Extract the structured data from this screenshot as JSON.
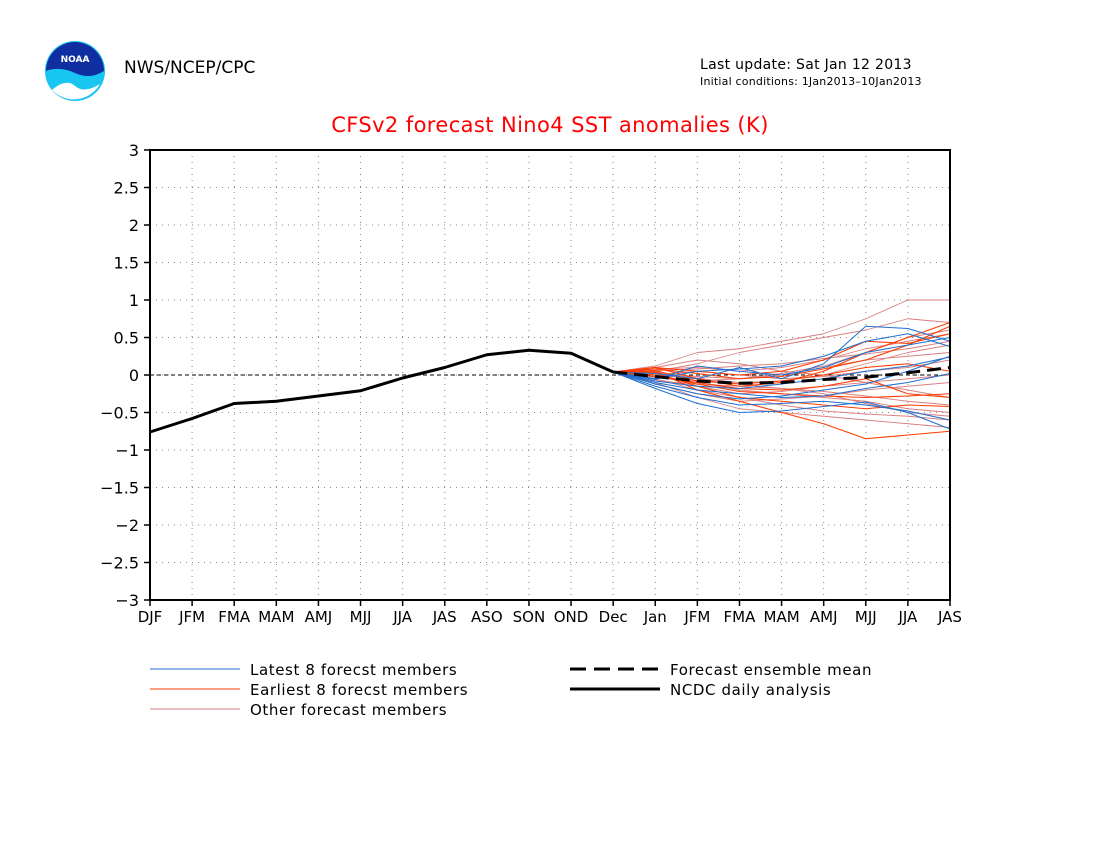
{
  "header": {
    "logo_text": "NOAA",
    "org": "NWS/NCEP/CPC",
    "last_update": "Last update: Sat Jan 12 2013",
    "initial_conditions": "Initial conditions: 1Jan2013–10Jan2013"
  },
  "colors": {
    "title": "#ff0000",
    "latest": "#1f6fd0",
    "earliest": "#ff3c00",
    "other": "#d98080",
    "analysis": "#000000",
    "mean": "#000000"
  },
  "chart_data": {
    "type": "line",
    "title": "CFSv2 forecast Nino4 SST anomalies (K)",
    "xlabel": "",
    "ylabel": "",
    "categories": [
      "DJF",
      "JFM",
      "FMA",
      "MAM",
      "AMJ",
      "MJJ",
      "JJA",
      "JAS",
      "ASO",
      "SON",
      "OND",
      "Dec",
      "Jan",
      "JFM",
      "FMA",
      "MAM",
      "AMJ",
      "MJJ",
      "JJA",
      "JAS"
    ],
    "ylim": [
      -3,
      3
    ],
    "yticks": [
      "3",
      "2.5",
      "2",
      "1.5",
      "1",
      "0.5",
      "0",
      "−0.5",
      "−1",
      "−1.5",
      "−2",
      "−2.5",
      "−3"
    ],
    "grid": true,
    "zero_line": true,
    "legend": {
      "placement": "bottom",
      "items": [
        {
          "label": "Latest 8 forecst members",
          "style": "latest"
        },
        {
          "label": "Earliest 8 forecst members",
          "style": "earliest"
        },
        {
          "label": "Other forecast members",
          "style": "other"
        },
        {
          "label": "Forecast ensemble mean",
          "style": "mean"
        },
        {
          "label": "NCDC daily analysis",
          "style": "analysis"
        }
      ]
    },
    "analysis": {
      "name": "NCDC daily analysis",
      "x_start_index": 0,
      "values": [
        -0.76,
        -0.58,
        -0.38,
        -0.35,
        -0.28,
        -0.21,
        -0.04,
        0.1,
        0.27,
        0.33,
        0.29,
        0.04
      ]
    },
    "ensemble_mean": {
      "name": "Forecast ensemble mean",
      "x_start_index": 11,
      "values": [
        0.04,
        -0.02,
        -0.08,
        -0.11,
        -0.1,
        -0.06,
        -0.03,
        0.03,
        0.1
      ]
    },
    "latest_members": {
      "name": "Latest 8 forecst members",
      "x_start_index": 11,
      "series": [
        [
          0.04,
          -0.12,
          -0.25,
          -0.32,
          -0.28,
          -0.2,
          -0.12,
          0.05,
          0.25
        ],
        [
          0.04,
          -0.05,
          0.05,
          0.08,
          0.12,
          0.25,
          0.45,
          0.55,
          0.38
        ],
        [
          0.04,
          -0.18,
          -0.38,
          -0.5,
          -0.48,
          -0.42,
          -0.36,
          -0.5,
          -0.72
        ],
        [
          0.04,
          0.02,
          -0.05,
          0.1,
          -0.05,
          0.15,
          0.65,
          0.62,
          0.45
        ],
        [
          0.04,
          -0.1,
          -0.2,
          -0.25,
          -0.3,
          -0.28,
          -0.18,
          -0.1,
          0.02
        ],
        [
          0.04,
          -0.08,
          -0.15,
          -0.18,
          -0.12,
          -0.05,
          0.05,
          0.12,
          0.24
        ],
        [
          0.04,
          -0.15,
          -0.3,
          -0.4,
          -0.38,
          -0.35,
          -0.4,
          -0.48,
          -0.6
        ],
        [
          0.04,
          -0.06,
          0.12,
          0.05,
          0.0,
          0.1,
          0.3,
          0.4,
          0.5
        ]
      ]
    },
    "earliest_members": {
      "name": "Earliest 8 forecst members",
      "x_start_index": 11,
      "series": [
        [
          0.04,
          0.1,
          -0.05,
          -0.15,
          -0.1,
          0.05,
          0.3,
          0.5,
          0.7
        ],
        [
          0.04,
          0.05,
          -0.2,
          -0.35,
          -0.5,
          -0.65,
          -0.85,
          -0.8,
          -0.75
        ],
        [
          0.04,
          0.08,
          0.02,
          -0.05,
          -0.02,
          0.08,
          0.2,
          0.4,
          0.65
        ],
        [
          0.04,
          0.0,
          -0.12,
          -0.22,
          -0.25,
          -0.28,
          -0.3,
          -0.28,
          -0.25
        ],
        [
          0.04,
          0.06,
          -0.08,
          -0.12,
          -0.08,
          0.0,
          0.1,
          0.15,
          0.05
        ],
        [
          0.04,
          0.03,
          -0.15,
          -0.3,
          -0.35,
          -0.4,
          -0.45,
          -0.4,
          -0.42
        ],
        [
          0.04,
          0.1,
          0.05,
          0.0,
          0.05,
          0.2,
          0.45,
          0.42,
          0.55
        ],
        [
          0.04,
          -0.02,
          -0.1,
          -0.18,
          -0.2,
          -0.15,
          -0.05,
          -0.25,
          -0.3
        ]
      ]
    },
    "other_members": {
      "name": "Other forecast members",
      "x_start_index": 11,
      "series": [
        [
          0.04,
          0.12,
          0.3,
          0.35,
          0.45,
          0.55,
          0.75,
          1.0,
          1.0
        ],
        [
          0.04,
          0.05,
          0.15,
          0.3,
          0.4,
          0.5,
          0.6,
          0.75,
          0.7
        ],
        [
          0.04,
          -0.1,
          -0.3,
          -0.45,
          -0.5,
          -0.55,
          -0.6,
          -0.65,
          -0.7
        ],
        [
          0.04,
          0.0,
          -0.05,
          -0.1,
          -0.08,
          0.0,
          0.15,
          0.3,
          0.4
        ],
        [
          0.04,
          -0.05,
          -0.2,
          -0.3,
          -0.4,
          -0.48,
          -0.52,
          -0.55,
          -0.6
        ],
        [
          0.04,
          0.08,
          0.1,
          0.05,
          0.1,
          0.2,
          0.35,
          0.45,
          0.55
        ],
        [
          0.04,
          -0.08,
          -0.12,
          -0.15,
          -0.18,
          -0.22,
          -0.28,
          -0.35,
          -0.4
        ],
        [
          0.04,
          0.02,
          -0.02,
          -0.05,
          0.0,
          0.1,
          0.2,
          0.25,
          0.3
        ],
        [
          0.04,
          -0.12,
          -0.25,
          -0.35,
          -0.32,
          -0.28,
          -0.2,
          -0.15,
          -0.1
        ],
        [
          0.04,
          0.06,
          0.08,
          0.12,
          0.15,
          0.22,
          0.28,
          0.35,
          0.45
        ],
        [
          0.04,
          -0.03,
          -0.1,
          -0.2,
          -0.25,
          -0.3,
          -0.35,
          -0.45,
          -0.5
        ],
        [
          0.04,
          0.0,
          0.05,
          0.0,
          -0.05,
          -0.02,
          0.05,
          0.1,
          0.2
        ],
        [
          0.04,
          -0.06,
          -0.15,
          -0.25,
          -0.22,
          -0.15,
          -0.1,
          -0.05,
          0.0
        ],
        [
          0.04,
          0.1,
          0.2,
          0.15,
          0.05,
          0.0,
          -0.1,
          -0.2,
          -0.3
        ],
        [
          0.04,
          -0.02,
          -0.08,
          -0.05,
          0.02,
          0.12,
          0.3,
          0.5,
          0.6
        ],
        [
          0.04,
          0.04,
          -0.04,
          -0.12,
          -0.18,
          -0.25,
          -0.38,
          -0.5,
          -0.55
        ]
      ]
    }
  }
}
